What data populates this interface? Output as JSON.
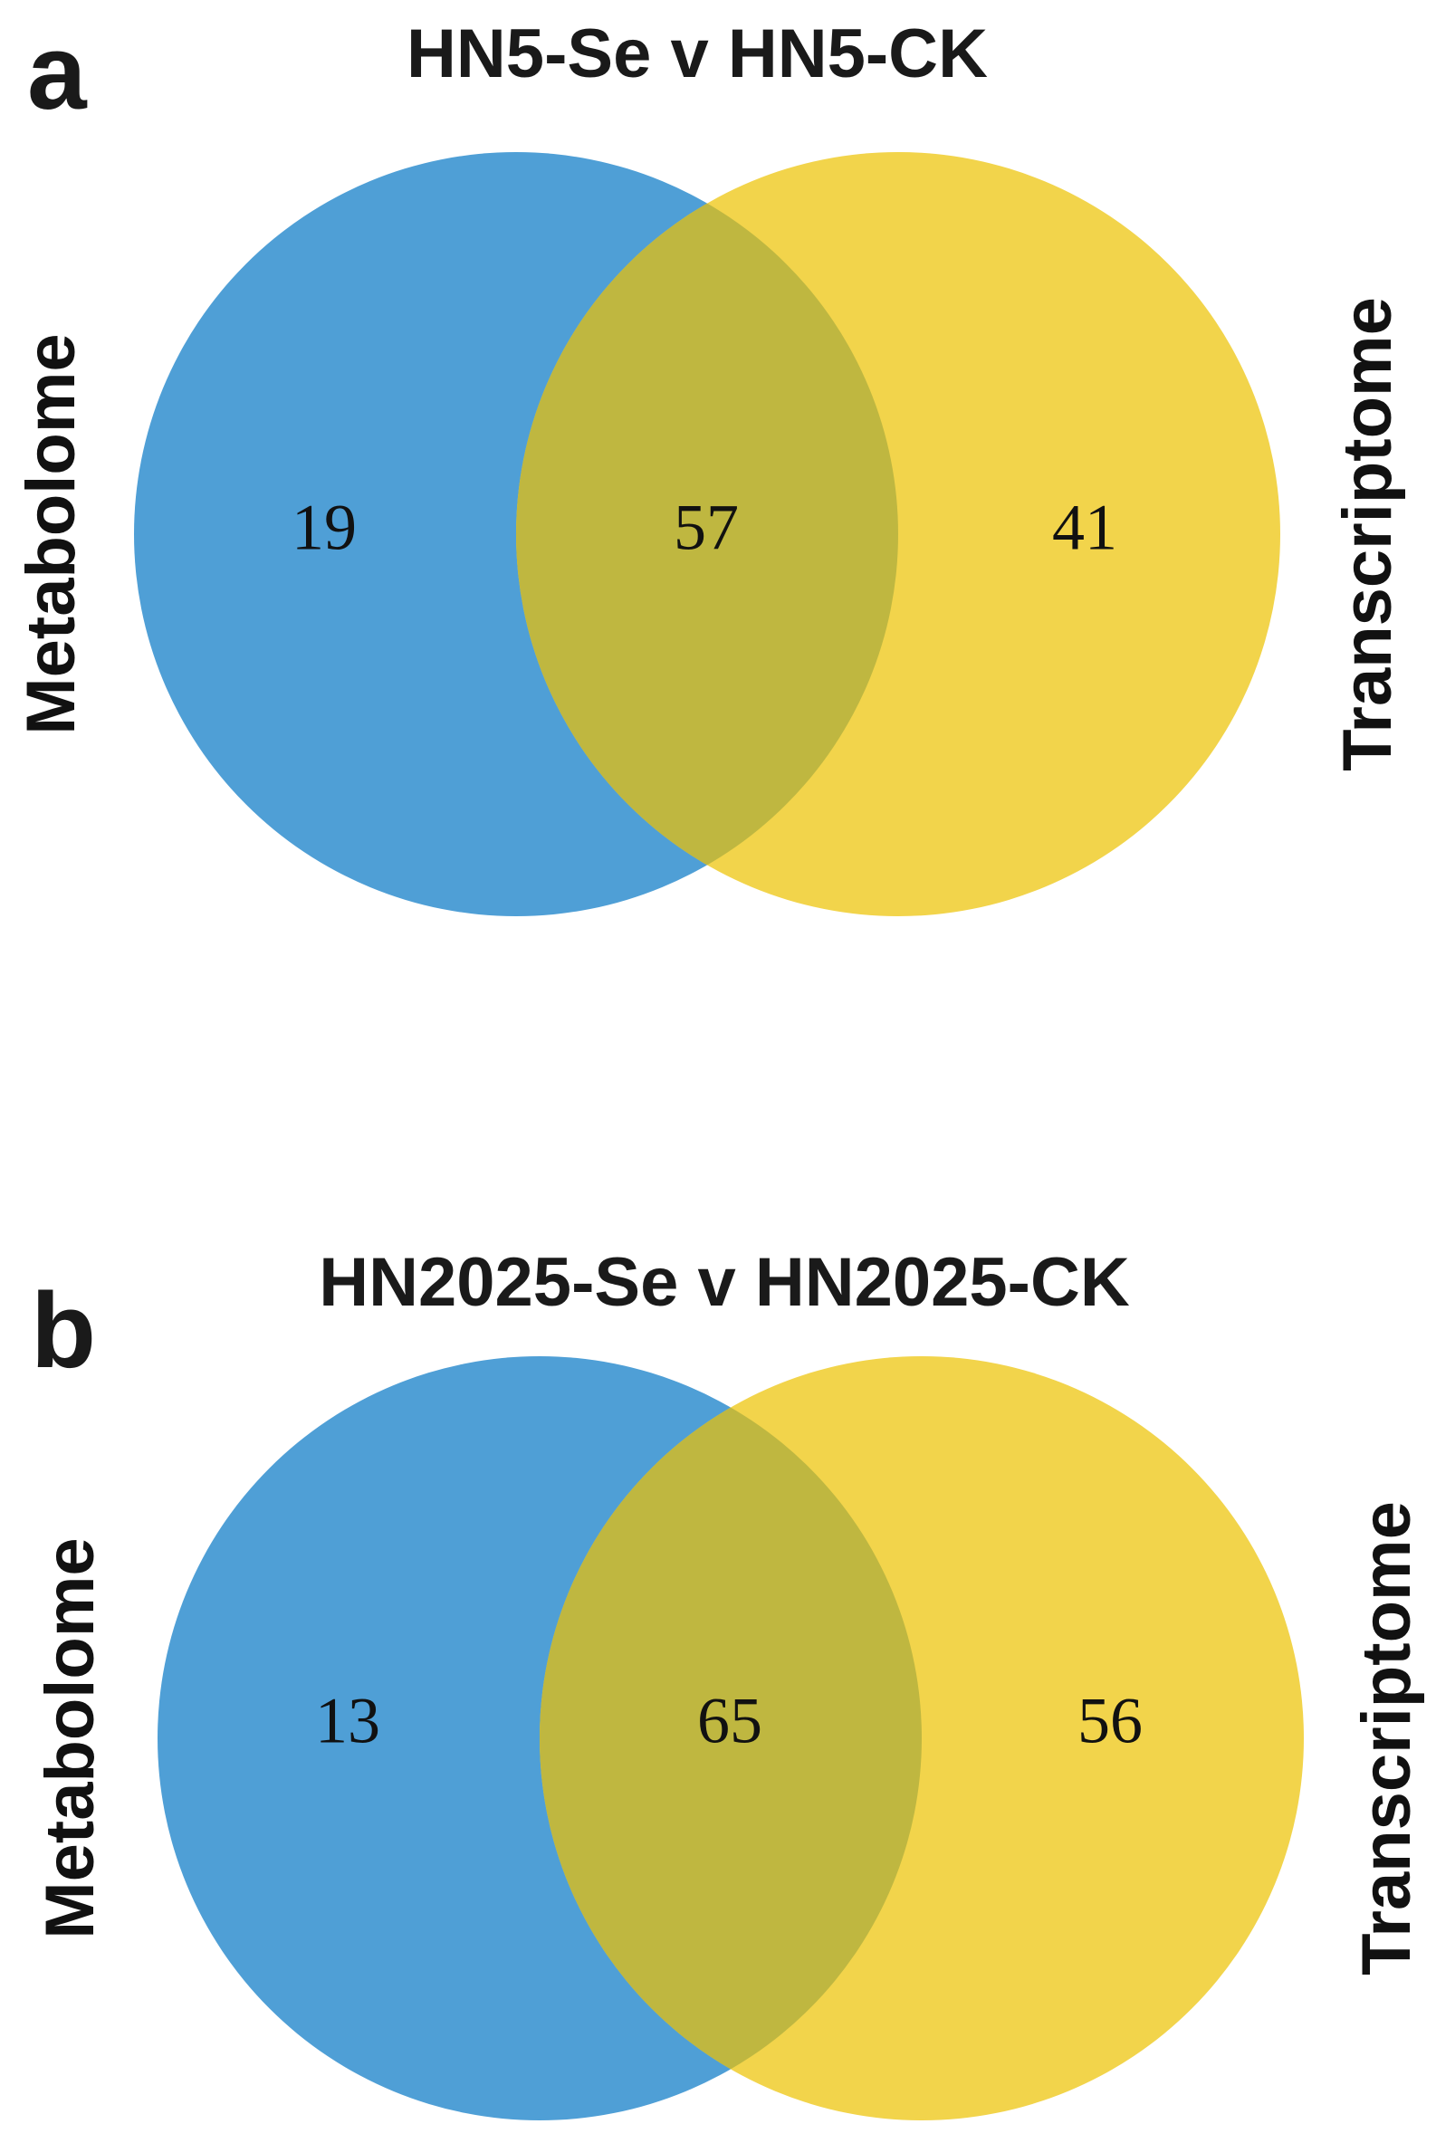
{
  "colors": {
    "left_set": "#4f9fd6",
    "right_set": "#f2d44b",
    "overlap": "#bfb740"
  },
  "panels": [
    {
      "letter": "a",
      "title": "HN5-Se v HN5-CK",
      "left_label": "Metabolome",
      "right_label": "Transcriptome",
      "counts": {
        "left_only": "19",
        "both": "57",
        "right_only": "41"
      }
    },
    {
      "letter": "b",
      "title": "HN2025-Se v HN2025-CK",
      "left_label": "Metabolome",
      "right_label": "Transcriptome",
      "counts": {
        "left_only": "13",
        "both": "65",
        "right_only": "56"
      }
    }
  ]
}
